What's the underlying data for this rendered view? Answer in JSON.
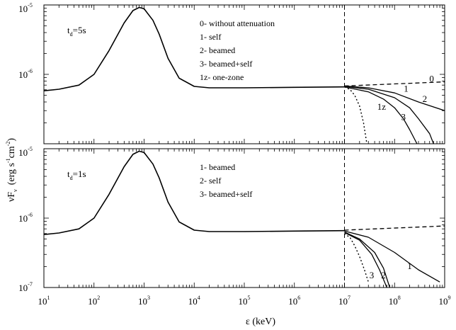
{
  "chart_data": {
    "type": "line",
    "x_scale": "log",
    "y_scale": "log",
    "xlabel": {
      "base": "ε (keV)"
    },
    "ylabel": {
      "part1": "νF",
      "sub": "ν",
      "part2": "(erg s",
      "sup1": "-1",
      "part3": "cm",
      "sup2": "-2",
      "part4": ")"
    },
    "xlim": [
      10,
      1000000000
    ],
    "x_ticks": [
      {
        "base": "10",
        "exp": "1",
        "value": 10
      },
      {
        "base": "10",
        "exp": "2",
        "value": 100
      },
      {
        "base": "10",
        "exp": "3",
        "value": 1000
      },
      {
        "base": "10",
        "exp": "4",
        "value": 10000
      },
      {
        "base": "10",
        "exp": "5",
        "value": 100000
      },
      {
        "base": "10",
        "exp": "6",
        "value": 1000000
      },
      {
        "base": "10",
        "exp": "7",
        "value": 10000000
      },
      {
        "base": "10",
        "exp": "8",
        "value": 100000000
      },
      {
        "base": "10",
        "exp": "9",
        "value": 1000000000
      }
    ],
    "vertical_reference_line": {
      "x": 10000000,
      "style": "dashed"
    },
    "panels": [
      {
        "id": "top",
        "ylim": [
          1e-07,
          1e-05
        ],
        "y_ticks": [
          {
            "base": "10",
            "exp": "-5",
            "value": 1e-05
          },
          {
            "base": "10",
            "exp": "-6",
            "value": 1e-06
          }
        ],
        "tag": {
          "main": "t",
          "sub": "d",
          "rest": "=5s"
        },
        "legend": [
          "0- without attenuation",
          "1- self",
          "2- beamed",
          "3- beamed+self",
          "1z- one-zone"
        ],
        "series": [
          {
            "name": "0",
            "style": "dashed",
            "points": [
              [
                10000000,
                6.8e-07
              ],
              [
                1000000000,
                7.8e-07
              ]
            ]
          },
          {
            "name": "1",
            "style": "solid",
            "points": [
              [
                10000000,
                6.8e-07
              ],
              [
                30000000,
                6.4e-07
              ],
              [
                100000000,
                5.4e-07
              ],
              [
                300000000,
                4e-07
              ],
              [
                1000000000,
                3e-07
              ]
            ]
          },
          {
            "name": "2",
            "style": "solid",
            "points": [
              [
                10000000,
                6.7e-07
              ],
              [
                30000000,
                6.1e-07
              ],
              [
                100000000,
                4.6e-07
              ],
              [
                200000000,
                3.3e-07
              ],
              [
                300000000,
                2.3e-07
              ],
              [
                500000000,
                1.4e-07
              ],
              [
                600000000,
                1e-07
              ]
            ]
          },
          {
            "name": "3",
            "style": "solid",
            "points": [
              [
                10000000,
                6.6e-07
              ],
              [
                30000000,
                5.6e-07
              ],
              [
                60000000,
                4.4e-07
              ],
              [
                100000000,
                3.3e-07
              ],
              [
                150000000,
                2.3e-07
              ],
              [
                200000000,
                1.6e-07
              ],
              [
                280000000,
                1e-07
              ]
            ]
          },
          {
            "name": "1z",
            "style": "dotted",
            "points": [
              [
                10000000,
                6.6e-07
              ],
              [
                13000000,
                6e-07
              ],
              [
                16000000,
                5e-07
              ],
              [
                20000000,
                3.5e-07
              ],
              [
                24000000,
                2e-07
              ],
              [
                28000000,
                1e-07
              ]
            ]
          }
        ],
        "label_positions": {
          "0": [
            550000000,
            7.8e-07
          ],
          "1": [
            170000000,
            5.6e-07
          ],
          "2": [
            400000000,
            4e-07
          ],
          "3": [
            150000000,
            2.2e-07
          ],
          "1z": [
            55000000,
            3.1e-07
          ]
        }
      },
      {
        "id": "bottom",
        "ylim": [
          1e-07,
          1e-05
        ],
        "y_ticks": [
          {
            "base": "10",
            "exp": "-5",
            "value": 1e-05
          },
          {
            "base": "10",
            "exp": "-6",
            "value": 1e-06
          },
          {
            "base": "10",
            "exp": "-7",
            "value": 1e-07
          }
        ],
        "tag": {
          "main": "t",
          "sub": "d",
          "rest": "=1s"
        },
        "legend": [
          "1- beamed",
          "2- self",
          "3- beamed+self"
        ],
        "series": [
          {
            "name": "1",
            "style": "solid",
            "points": [
              [
                10000000,
                6.5e-07
              ],
              [
                30000000,
                5.3e-07
              ],
              [
                100000000,
                3.2e-07
              ],
              [
                300000000,
                1.8e-07
              ],
              [
                800000000,
                1.2e-07
              ]
            ]
          },
          {
            "name": "2",
            "style": "solid",
            "points": [
              [
                10000000,
                6.3e-07
              ],
              [
                20000000,
                5e-07
              ],
              [
                40000000,
                3.2e-07
              ],
              [
                60000000,
                1.9e-07
              ],
              [
                80000000,
                1e-07
              ]
            ]
          },
          {
            "name": "3",
            "style": "solid",
            "points": [
              [
                10000000,
                6.2e-07
              ],
              [
                20000000,
                4.8e-07
              ],
              [
                35000000,
                3e-07
              ],
              [
                50000000,
                1.8e-07
              ],
              [
                70000000,
                1e-07
              ]
            ]
          },
          {
            "name": "dotted",
            "style": "dotted",
            "points": [
              [
                10000000,
                6e-07
              ],
              [
                13000000,
                5.2e-07
              ],
              [
                16000000,
                4e-07
              ],
              [
                20000000,
                2.8e-07
              ],
              [
                25000000,
                1.8e-07
              ],
              [
                30000000,
                1.2e-07
              ]
            ]
          },
          {
            "name": "dashed",
            "style": "dashed",
            "points": [
              [
                10000000,
                6.7e-07
              ],
              [
                1000000000,
                7.7e-07
              ]
            ]
          }
        ],
        "label_positions": {
          "1": [
            200000000,
            1.85e-07
          ],
          "2": [
            60000000,
            1.35e-07
          ],
          "3": [
            35000000,
            1.35e-07
          ]
        }
      }
    ],
    "shared_base": [
      [
        10,
        5.8e-07
      ],
      [
        20,
        6.1e-07
      ],
      [
        50,
        7e-07
      ],
      [
        100,
        1e-06
      ],
      [
        200,
        2.2e-06
      ],
      [
        400,
        5.5e-06
      ],
      [
        600,
        8.3e-06
      ],
      [
        800,
        9.2e-06
      ],
      [
        1000,
        8.8e-06
      ],
      [
        1500,
        6e-06
      ],
      [
        2000,
        3.8e-06
      ],
      [
        3000,
        1.7e-06
      ],
      [
        5000,
        8.8e-07
      ],
      [
        10000,
        6.7e-07
      ],
      [
        20000,
        6.4e-07
      ],
      [
        100000,
        6.4e-07
      ],
      [
        1000000,
        6.5e-07
      ],
      [
        10000000,
        6.6e-07
      ]
    ]
  }
}
